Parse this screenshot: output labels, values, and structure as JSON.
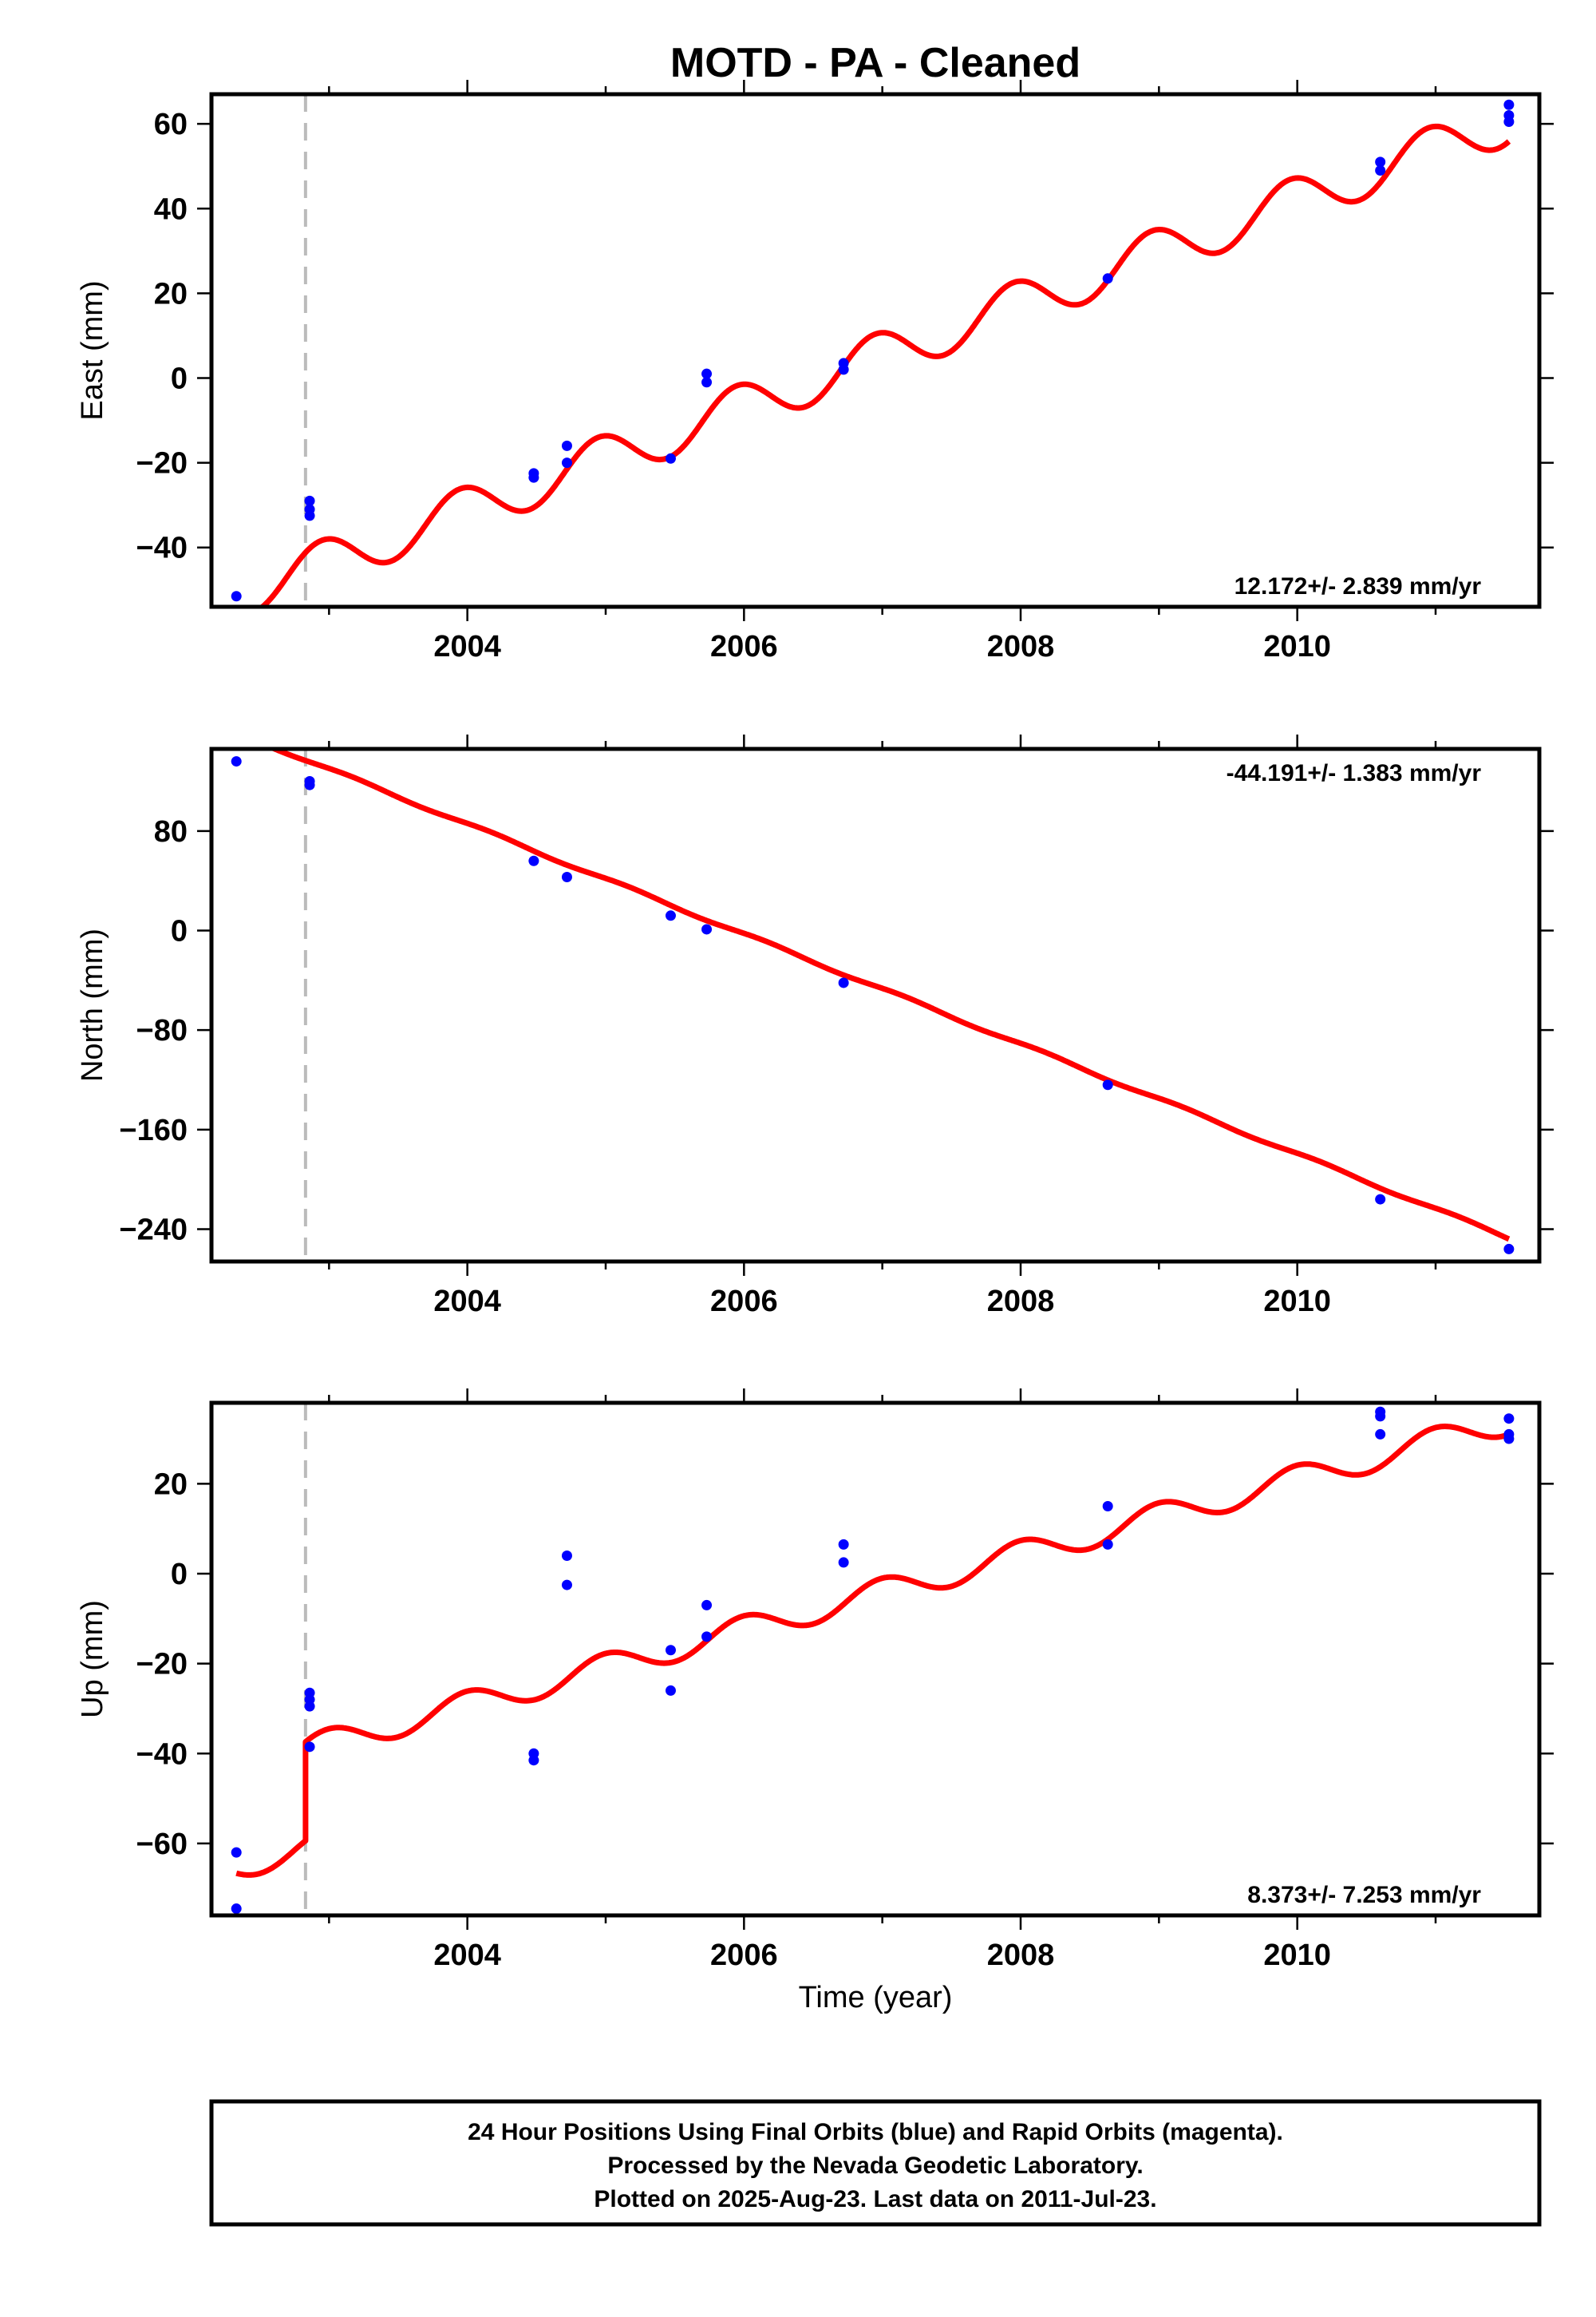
{
  "figure": {
    "title": "MOTD  - PA - Cleaned",
    "xlabel": "Time (year)",
    "footer_lines": [
      "24 Hour Positions Using Final Orbits (blue) and Rapid Orbits (magenta).",
      "Processed by the Nevada Geodetic Laboratory.",
      "Plotted on 2025-Aug-23. Last data on 2011-Jul-23."
    ],
    "colors": {
      "data": "#0000ff",
      "model": "#ff0000",
      "break_line": "#bbbbbb"
    }
  },
  "chart_data": [
    {
      "type": "scatter",
      "panel": "east",
      "ylabel": "East (mm)",
      "rate_label": "12.172+/- 2.839 mm/yr",
      "xlim": [
        2002.15,
        2011.75
      ],
      "ylim": [
        -54,
        67
      ],
      "xticks": [
        2004,
        2006,
        2008,
        2010
      ],
      "yticks": [
        -40,
        -20,
        0,
        20,
        40,
        60
      ],
      "break_epoch": 2002.83,
      "points": [
        [
          2002.33,
          -51.5
        ],
        [
          2002.86,
          -29
        ],
        [
          2002.86,
          -31
        ],
        [
          2002.86,
          -32.5
        ],
        [
          2004.48,
          -22.5
        ],
        [
          2004.48,
          -23.5
        ],
        [
          2004.72,
          -16
        ],
        [
          2004.72,
          -20
        ],
        [
          2005.47,
          -19
        ],
        [
          2005.73,
          1
        ],
        [
          2005.73,
          -1
        ],
        [
          2006.72,
          3.5
        ],
        [
          2006.72,
          2
        ],
        [
          2008.63,
          23.5
        ],
        [
          2010.6,
          51
        ],
        [
          2010.6,
          49
        ],
        [
          2011.53,
          64.5
        ],
        [
          2011.53,
          62
        ],
        [
          2011.53,
          60.5
        ]
      ],
      "model": {
        "rate": 12.172,
        "value_at_2007": 5.5,
        "annual_amplitude": 5.5,
        "annual_phase": 1.9,
        "steps": []
      }
    },
    {
      "type": "scatter",
      "panel": "north",
      "ylabel": "North (mm)",
      "rate_label": "-44.191+/- 1.383 mm/yr",
      "xlim": [
        2002.15,
        2011.75
      ],
      "ylim": [
        -266,
        146
      ],
      "xticks": [
        2004,
        2006,
        2008,
        2010
      ],
      "yticks": [
        -240,
        -160,
        -80,
        0,
        80
      ],
      "break_epoch": 2002.83,
      "points": [
        [
          2002.33,
          136
        ],
        [
          2002.86,
          120
        ],
        [
          2002.86,
          117
        ],
        [
          2004.48,
          56
        ],
        [
          2004.72,
          43
        ],
        [
          2005.47,
          12
        ],
        [
          2005.73,
          1
        ],
        [
          2006.72,
          -42
        ],
        [
          2008.63,
          -124
        ],
        [
          2010.6,
          -216
        ],
        [
          2011.53,
          -256
        ]
      ],
      "model": {
        "rate": -44.191,
        "value_at_2007": -47,
        "annual_amplitude": 1.2,
        "annual_phase": 0.5,
        "steps": []
      }
    },
    {
      "type": "scatter",
      "panel": "up",
      "ylabel": "Up (mm)",
      "rate_label": "8.373+/- 7.253 mm/yr",
      "xlim": [
        2002.15,
        2011.75
      ],
      "ylim": [
        -76,
        38
      ],
      "xticks": [
        2004,
        2006,
        2008,
        2010
      ],
      "yticks": [
        -60,
        -40,
        -20,
        0,
        20
      ],
      "break_epoch": 2002.83,
      "points": [
        [
          2002.33,
          -62
        ],
        [
          2002.33,
          -74.5
        ],
        [
          2002.86,
          -26.5
        ],
        [
          2002.86,
          -28
        ],
        [
          2002.86,
          -29.5
        ],
        [
          2002.86,
          -38.5
        ],
        [
          2004.48,
          -40
        ],
        [
          2004.48,
          -41.5
        ],
        [
          2004.72,
          4
        ],
        [
          2004.72,
          -2.5
        ],
        [
          2005.47,
          -17
        ],
        [
          2005.47,
          -26
        ],
        [
          2005.73,
          -7
        ],
        [
          2005.73,
          -14
        ],
        [
          2006.72,
          6.5
        ],
        [
          2006.72,
          2.5
        ],
        [
          2008.63,
          15
        ],
        [
          2008.63,
          6.5
        ],
        [
          2010.6,
          36
        ],
        [
          2010.6,
          35
        ],
        [
          2010.6,
          31
        ],
        [
          2011.53,
          34.5
        ],
        [
          2011.53,
          31
        ],
        [
          2011.53,
          30
        ]
      ],
      "model": {
        "rate": 8.373,
        "value_at_2007": -4,
        "annual_amplitude": 3,
        "annual_phase": 1.6,
        "steps": [
          {
            "epoch": 2002.83,
            "size": 22
          }
        ]
      }
    }
  ]
}
